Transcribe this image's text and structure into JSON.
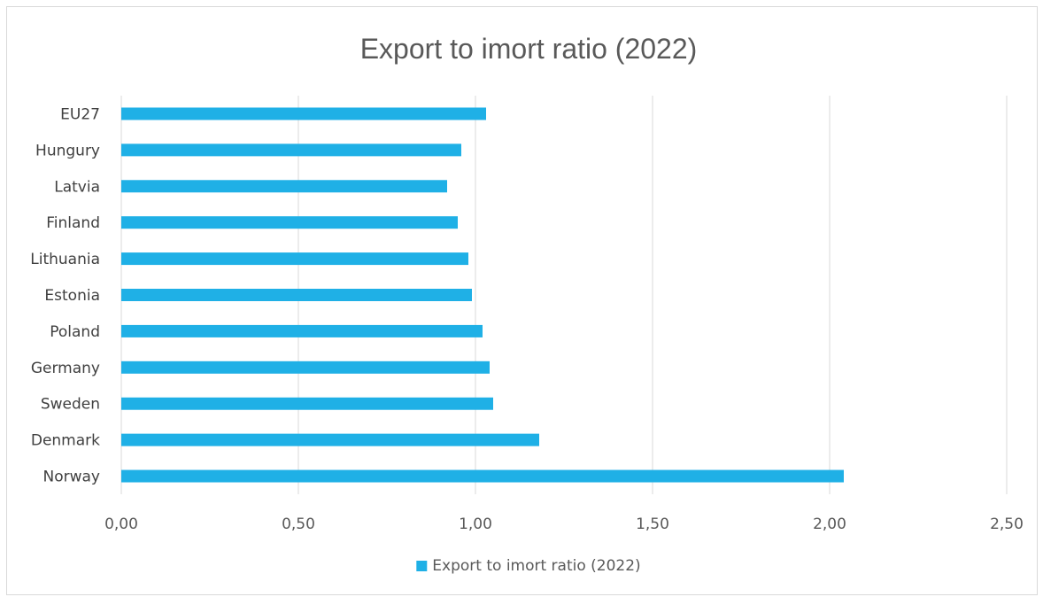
{
  "chart_data": {
    "type": "bar",
    "orientation": "horizontal",
    "title": "Export to imort ratio (2022)",
    "categories": [
      "EU27",
      "Hungury",
      "Latvia",
      "Finland",
      "Lithuania",
      "Estonia",
      "Poland",
      "Germany",
      "Sweden",
      "Denmark",
      "Norway"
    ],
    "series": [
      {
        "name": "Export to imort ratio (2022)",
        "color": "#1FB0E6",
        "values": [
          1.03,
          0.96,
          0.92,
          0.95,
          0.98,
          0.99,
          1.02,
          1.04,
          1.05,
          1.18,
          2.04
        ]
      }
    ],
    "xlim": [
      0,
      2.5
    ],
    "x_ticks": [
      "0,00",
      "0,50",
      "1,00",
      "1,50",
      "2,00",
      "2,50"
    ],
    "grid": "vertical",
    "legend_position": "bottom"
  }
}
